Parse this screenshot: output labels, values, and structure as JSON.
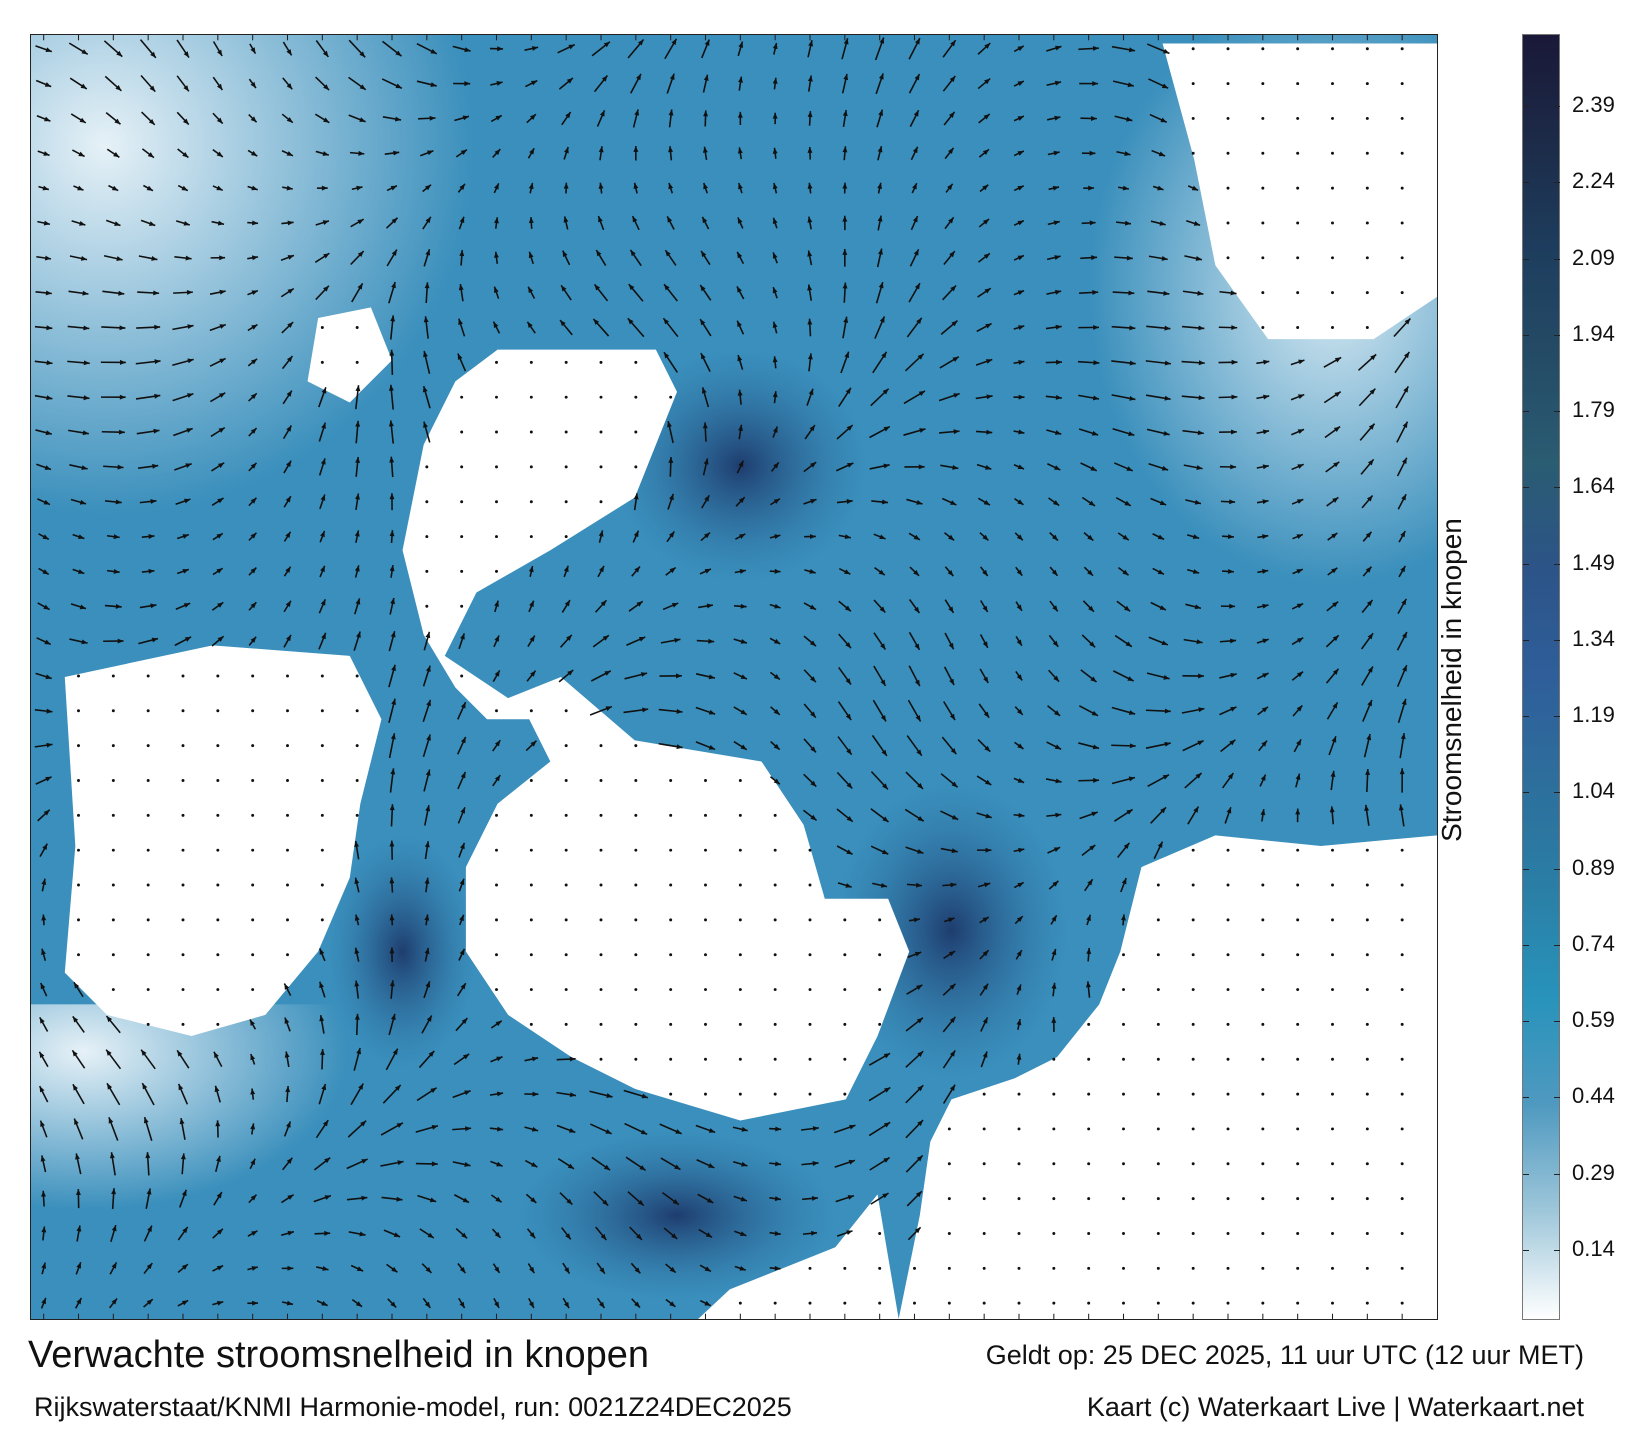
{
  "map": {
    "title": "Verwachte stroomsnelheid in knopen",
    "valid_time": "Geldt op: 25 DEC 2025, 11 uur UTC (12 uur MET)",
    "model_run": "Rijkswaterstaat/KNMI Harmonie-model, run: 0021Z24DEC2025",
    "credit": "Kaart (c) Waterkaart Live | Waterkaart.net",
    "sea_color": "#3a8fbc",
    "land_color": "#ffffff"
  },
  "colorbar": {
    "label": "Stroomsnelheid in knopen",
    "ticks": [
      "2.39",
      "2.24",
      "2.09",
      "1.94",
      "1.79",
      "1.64",
      "1.49",
      "1.34",
      "1.19",
      "1.04",
      "0.89",
      "0.74",
      "0.59",
      "0.44",
      "0.29",
      "0.14"
    ],
    "tick_values": [
      2.39,
      2.24,
      2.09,
      1.94,
      1.79,
      1.64,
      1.49,
      1.34,
      1.19,
      1.04,
      0.89,
      0.74,
      0.59,
      0.44,
      0.29,
      0.14
    ],
    "range": [
      0,
      2.53
    ],
    "colors": [
      "#ffffff",
      "#9fc7da",
      "#4f99c0",
      "#2893bb",
      "#2a7fa6",
      "#2d6f9c",
      "#2f5e9a",
      "#2c5488",
      "#2a5c72",
      "#244b66",
      "#1e3d5e",
      "#1c2b48",
      "#1a1838"
    ]
  }
}
